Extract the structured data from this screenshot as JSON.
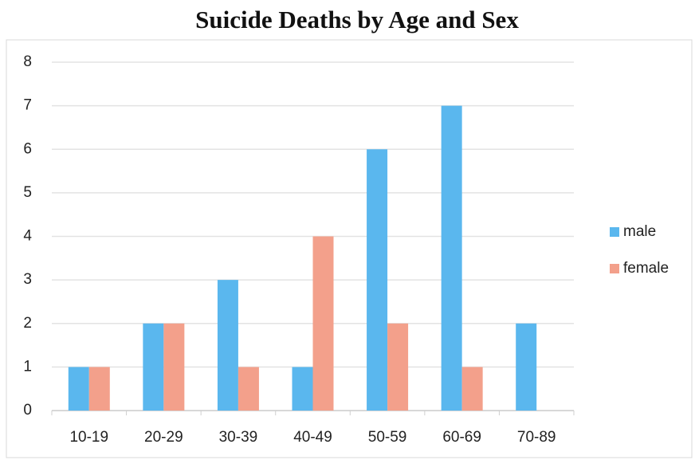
{
  "chart_data": {
    "type": "bar",
    "title": "Suicide Deaths by Age and Sex",
    "categories": [
      "10-19",
      "20-29",
      "30-39",
      "40-49",
      "50-59",
      "60-69",
      "70-89"
    ],
    "series": [
      {
        "name": "male",
        "color": "#5ab7ee",
        "values": [
          1,
          2,
          3,
          1,
          6,
          7,
          2
        ]
      },
      {
        "name": "female",
        "color": "#f3a08b",
        "values": [
          1,
          2,
          1,
          4,
          2,
          1,
          0
        ]
      }
    ],
    "ylim": [
      0,
      8
    ],
    "yticks": [
      0,
      1,
      2,
      3,
      4,
      5,
      6,
      7,
      8
    ],
    "grid": true,
    "legend": "right"
  }
}
